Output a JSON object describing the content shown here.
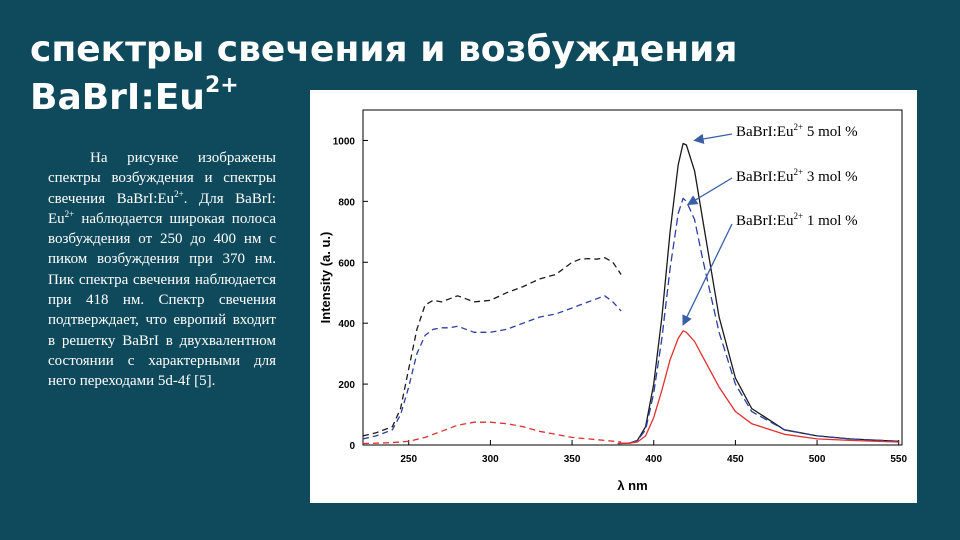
{
  "slide": {
    "title_line1": "спектры свечения и возбуждения",
    "title_line2_main": "BaBrI:Eu",
    "title_line2_sup": "2+",
    "body_html": "На рисунке изображены спектры возбуждения и спектры свечения BaBrI:Eu<sup>2+</sup>. Для BaBrI: Eu<sup>2+</sup> наблюдается широкая полоса возбуждения от 250 до 400 нм с пиком возбуждения при 370 нм. Пик спектра свечения наблюдается при 418 нм. Спектр свечения подтверждает, что европий входит в решетку BaBrI в двухвалентном состоянии с характерными для него переходами 5d-4f [5]."
  },
  "colors": {
    "background": "#0f4a5c",
    "text": "#ffffff",
    "black_series": "#1a1a1a",
    "blue_series": "#2b3f9e",
    "red_series": "#e03030"
  },
  "chart_data": {
    "type": "line",
    "xlabel": "λ nm",
    "ylabel": "Intensity (a. u.)",
    "xlim": [
      222,
      552
    ],
    "ylim": [
      0,
      1100
    ],
    "xticks": [
      250,
      300,
      350,
      400,
      450,
      500,
      550
    ],
    "yticks": [
      0,
      200,
      400,
      600,
      800,
      1000
    ],
    "legend": [
      {
        "main": "BaBrI:Eu",
        "sup": "2+",
        "rest": " 5 mol %"
      },
      {
        "main": "BaBrI:Eu",
        "sup": "2+",
        "rest": " 3 mol %"
      },
      {
        "main": "BaBrI:Eu",
        "sup": "2+",
        "rest": " 1 mol %"
      }
    ],
    "series": [
      {
        "name": "BaBrI:Eu2+ 5 mol % (emission)",
        "color": "#1a1a1a",
        "dash": "",
        "x": [
          378,
          385,
          390,
          395,
          400,
          405,
          410,
          415,
          418,
          420,
          425,
          430,
          440,
          450,
          460,
          480,
          500,
          520,
          550
        ],
        "y": [
          5,
          6,
          15,
          60,
          200,
          420,
          700,
          920,
          990,
          985,
          900,
          740,
          420,
          220,
          120,
          50,
          30,
          20,
          12
        ]
      },
      {
        "name": "BaBrI:Eu2+ 3 mol % (emission)",
        "color": "#2b3f9e",
        "dash": "8,4",
        "x": [
          378,
          385,
          390,
          395,
          400,
          405,
          410,
          415,
          418,
          420,
          425,
          430,
          440,
          450,
          460,
          480,
          500,
          520,
          550
        ],
        "y": [
          5,
          6,
          15,
          50,
          170,
          350,
          580,
          760,
          810,
          800,
          740,
          610,
          370,
          200,
          110,
          50,
          30,
          20,
          12
        ]
      },
      {
        "name": "BaBrI:Eu2+ 1 mol % (emission)",
        "color": "#e03030",
        "dash": "",
        "x": [
          378,
          385,
          390,
          395,
          400,
          405,
          410,
          415,
          418,
          420,
          425,
          430,
          440,
          450,
          460,
          480,
          500,
          520,
          550
        ],
        "y": [
          5,
          6,
          10,
          30,
          90,
          180,
          280,
          350,
          375,
          370,
          340,
          290,
          190,
          110,
          70,
          35,
          20,
          15,
          10
        ]
      },
      {
        "name": "BaBrI:Eu2+ 5 mol % (excitation)",
        "color": "#1a1a1a",
        "dash": "6,4",
        "x": [
          222,
          230,
          240,
          245,
          250,
          255,
          260,
          265,
          270,
          275,
          280,
          285,
          290,
          300,
          310,
          320,
          330,
          340,
          350,
          355,
          360,
          365,
          370,
          375,
          380
        ],
        "y": [
          30,
          40,
          60,
          120,
          250,
          380,
          460,
          475,
          470,
          480,
          490,
          480,
          470,
          475,
          500,
          520,
          545,
          560,
          600,
          610,
          612,
          610,
          615,
          600,
          560
        ]
      },
      {
        "name": "BaBrI:Eu2+ 3 mol % (excitation)",
        "color": "#2b3f9e",
        "dash": "6,4",
        "x": [
          222,
          230,
          240,
          245,
          250,
          255,
          260,
          265,
          270,
          275,
          280,
          285,
          290,
          300,
          310,
          320,
          330,
          340,
          350,
          355,
          360,
          365,
          370,
          375,
          380
        ],
        "y": [
          20,
          30,
          50,
          100,
          190,
          300,
          360,
          380,
          385,
          385,
          390,
          380,
          370,
          370,
          380,
          400,
          420,
          430,
          450,
          460,
          470,
          480,
          490,
          470,
          440
        ]
      },
      {
        "name": "BaBrI:Eu2+ 1 mol % (excitation)",
        "color": "#e03030",
        "dash": "6,4",
        "x": [
          222,
          230,
          240,
          250,
          260,
          270,
          280,
          290,
          300,
          310,
          320,
          330,
          340,
          350,
          360,
          370,
          380
        ],
        "y": [
          5,
          6,
          8,
          12,
          25,
          45,
          65,
          75,
          75,
          70,
          60,
          45,
          35,
          25,
          20,
          15,
          10
        ]
      }
    ],
    "grid": false
  }
}
